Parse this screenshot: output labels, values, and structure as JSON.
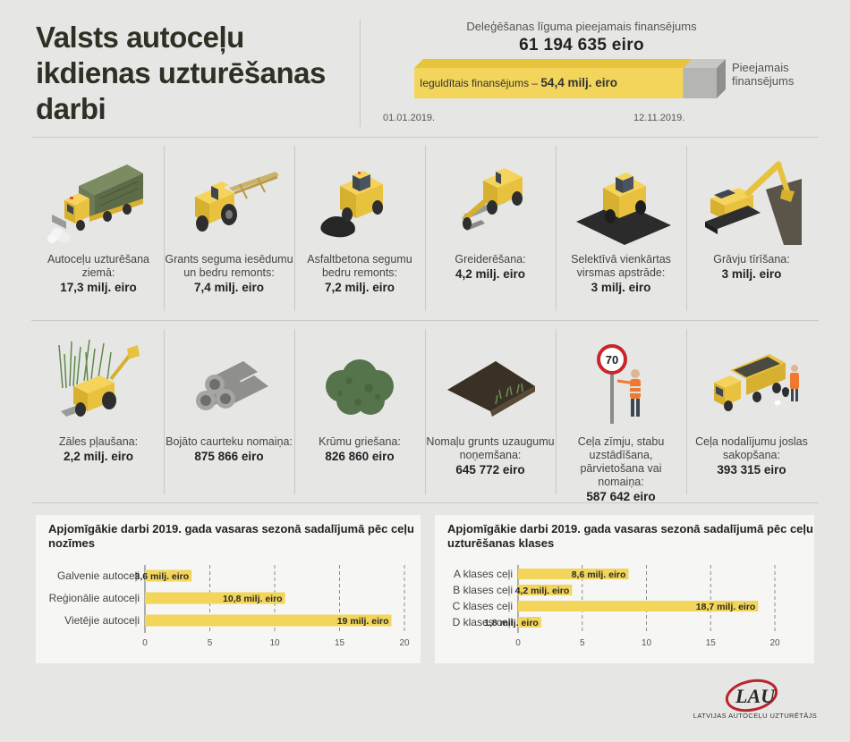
{
  "header": {
    "title": "Valsts autoceļu ikdienas uzturēšanas darbi",
    "funding_label": "Deleģēšanas līguma pieejamais finansējums",
    "funding_value": "61 194 635 eiro",
    "invested_label": "Ieguldītais finansējums – ",
    "invested_value": "54,4 milj. eiro",
    "available_label": "Pieejamais finansējums",
    "date_start": "01.01.2019.",
    "date_end": "12.11.2019.",
    "invested_fraction": 0.889
  },
  "works": [
    {
      "label": "Autoceļu uzturēšana ziemā:",
      "value": "17,3 milj. eiro",
      "icon": "snowplow-truck-icon"
    },
    {
      "label": "Grants seguma iesēdumu un bedru remonts:",
      "value": "7,4 milj. eiro",
      "icon": "tractor-grader-icon"
    },
    {
      "label": "Asfaltbetona segumu bedru remonts:",
      "value": "7,2 milj. eiro",
      "icon": "asphalt-roller-icon"
    },
    {
      "label": "Greiderēšana:",
      "value": "4,2 milj. eiro",
      "icon": "grader-icon"
    },
    {
      "label": "Selektīvā vienkārtas virsmas apstrāde:",
      "value": "3 milj. eiro",
      "icon": "surface-treatment-icon"
    },
    {
      "label": "Grāvju tīrīšana:",
      "value": "3 milj. eiro",
      "icon": "excavator-icon"
    },
    {
      "label": "Zāles pļaušana:",
      "value": "2,2 milj. eiro",
      "icon": "mower-tractor-icon"
    },
    {
      "label": "Bojāto caurteku nomaiņa:",
      "value": "875 866 eiro",
      "icon": "culvert-pipes-icon"
    },
    {
      "label": "Krūmu griešana:",
      "value": "826 860 eiro",
      "icon": "bush-icon"
    },
    {
      "label": "Nomaļu grunts uzaugumu noņemšana:",
      "value": "645 772 eiro",
      "icon": "shoulder-soil-icon"
    },
    {
      "label": "Ceļa zīmju, stabu uzstādīšana, pārvietošana vai nomaiņa:",
      "value": "587 642 eiro",
      "icon": "road-sign-icon"
    },
    {
      "label": "Ceļa nodalījumu joslas sakopšana:",
      "value": "393 315  eiro",
      "icon": "cleanup-truck-icon"
    }
  ],
  "sign_text": "70",
  "brand": {
    "logo_text": "LAU",
    "caption": "LATVIJAS AUTOCEĻU UZTURĒTĀJS"
  },
  "colors": {
    "accent": "#f2d55a",
    "accent_dark": "#e3bf2d",
    "background": "#e6e6e5",
    "panel": "#f6f6f4",
    "grey_bar": "#b5b5b1",
    "logo_red": "#b8262c"
  },
  "chart_data": [
    {
      "type": "bar",
      "orientation": "horizontal",
      "title": "Apjomīgākie darbi 2019. gada vasaras sezonā sadalījumā pēc ceļu nozīmes",
      "categories": [
        "Galvenie autoceļi",
        "Reģionālie autoceļi",
        "Vietējie autoceļi"
      ],
      "values": [
        3.6,
        10.8,
        19
      ],
      "data_labels": [
        "3,6 milj. eiro",
        "10,8 milj. eiro",
        "19 milj. eiro"
      ],
      "xlim": [
        0,
        20
      ],
      "xticks": [
        "0",
        "5",
        "10",
        "15",
        "20"
      ],
      "grid": "dashed vertical"
    },
    {
      "type": "bar",
      "orientation": "horizontal",
      "title": "Apjomīgākie darbi 2019. gada vasaras sezonā sadalījumā pēc ceļu uzturēšanas klases",
      "categories": [
        "A klases ceļi",
        "B klases ceļi",
        "C klases ceļi",
        "D klases ceļi"
      ],
      "values": [
        8.6,
        4.2,
        18.7,
        1.8
      ],
      "data_labels": [
        "8,6 milj. eiro",
        "4,2 milj. eiro",
        "18,7 milj. eiro",
        "1,8 milj. eiro"
      ],
      "xlim": [
        0,
        20
      ],
      "xticks": [
        "0",
        "5",
        "10",
        "15",
        "20"
      ],
      "grid": "dashed vertical"
    }
  ]
}
